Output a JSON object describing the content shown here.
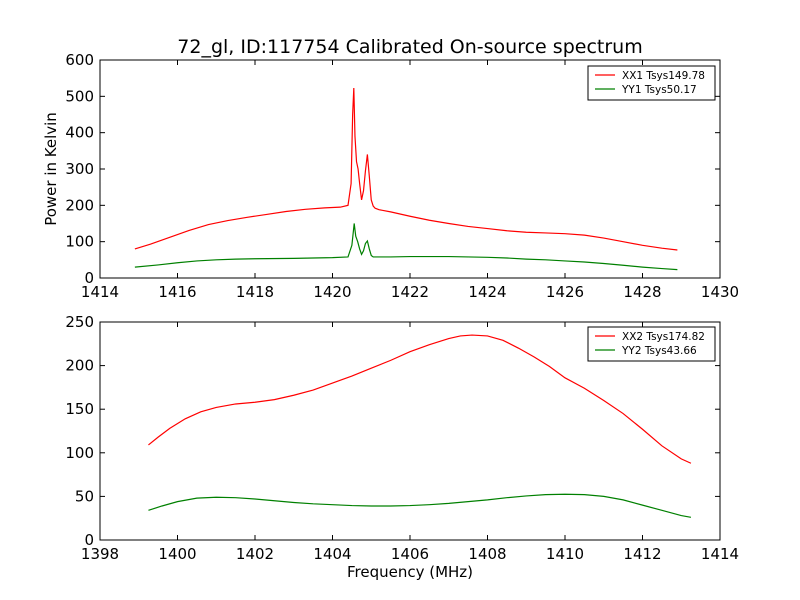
{
  "chart_data": [
    {
      "type": "line",
      "title": "72_gl, ID:117754 Calibrated On-source spectrum",
      "xlabel": "",
      "ylabel": "Power in Kelvin",
      "xlim": [
        1414,
        1430
      ],
      "ylim": [
        0,
        600
      ],
      "xticks": [
        1414,
        1416,
        1418,
        1420,
        1422,
        1424,
        1426,
        1428,
        1430
      ],
      "yticks": [
        0,
        100,
        200,
        300,
        400,
        500,
        600
      ],
      "legend_position": "top-right",
      "grid": false,
      "series": [
        {
          "name": "XX1 Tsys149.78",
          "color": "#ff0000",
          "x": [
            1414.9,
            1415.3,
            1415.8,
            1416.3,
            1416.8,
            1417.3,
            1417.8,
            1418.3,
            1418.8,
            1419.3,
            1419.8,
            1420.2,
            1420.4,
            1420.48,
            1420.52,
            1420.55,
            1420.58,
            1420.62,
            1420.66,
            1420.7,
            1420.75,
            1420.8,
            1420.85,
            1420.9,
            1420.95,
            1421.0,
            1421.05,
            1421.1,
            1421.2,
            1421.5,
            1422.0,
            1422.5,
            1423.0,
            1423.5,
            1424.0,
            1424.5,
            1425.0,
            1425.5,
            1426.0,
            1426.5,
            1427.0,
            1427.5,
            1428.0,
            1428.5,
            1428.9
          ],
          "y": [
            80,
            93,
            112,
            131,
            147,
            158,
            167,
            175,
            183,
            189,
            193,
            195,
            200,
            260,
            450,
            523,
            390,
            320,
            300,
            260,
            215,
            240,
            295,
            340,
            280,
            215,
            198,
            192,
            188,
            182,
            170,
            159,
            150,
            142,
            136,
            130,
            126,
            124,
            122,
            118,
            110,
            100,
            90,
            82,
            77
          ]
        },
        {
          "name": "YY1 Tsys50.17",
          "color": "#008000",
          "x": [
            1414.9,
            1415.5,
            1416.0,
            1416.5,
            1417.0,
            1417.5,
            1418.0,
            1419.0,
            1420.0,
            1420.4,
            1420.5,
            1420.56,
            1420.6,
            1420.65,
            1420.7,
            1420.75,
            1420.8,
            1420.85,
            1420.9,
            1420.95,
            1421.0,
            1421.05,
            1421.1,
            1421.5,
            1422.0,
            1422.5,
            1423.0,
            1423.5,
            1424.0,
            1424.5,
            1425.0,
            1425.5,
            1426.0,
            1426.5,
            1427.0,
            1427.5,
            1428.0,
            1428.5,
            1428.9
          ],
          "y": [
            30,
            36,
            42,
            47,
            50,
            52,
            53,
            54,
            56,
            58,
            90,
            150,
            115,
            100,
            80,
            65,
            75,
            95,
            102,
            80,
            62,
            58,
            58,
            58,
            59,
            59,
            59,
            58,
            57,
            55,
            52,
            50,
            47,
            44,
            40,
            35,
            30,
            26,
            23
          ]
        }
      ]
    },
    {
      "type": "line",
      "title": "",
      "xlabel": "Frequency (MHz)",
      "ylabel": "",
      "xlim": [
        1398,
        1414
      ],
      "ylim": [
        0,
        250
      ],
      "xticks": [
        1398,
        1400,
        1402,
        1404,
        1406,
        1408,
        1410,
        1412,
        1414
      ],
      "yticks": [
        0,
        50,
        100,
        150,
        200,
        250
      ],
      "legend_position": "top-right",
      "grid": false,
      "series": [
        {
          "name": "XX2 Tsys174.82",
          "color": "#ff0000",
          "x": [
            1399.25,
            1399.5,
            1399.8,
            1400.2,
            1400.6,
            1401.0,
            1401.5,
            1402.0,
            1402.5,
            1403.0,
            1403.5,
            1404.0,
            1404.5,
            1405.0,
            1405.5,
            1406.0,
            1406.5,
            1407.0,
            1407.3,
            1407.6,
            1408.0,
            1408.4,
            1408.8,
            1409.2,
            1409.6,
            1410.0,
            1410.5,
            1411.0,
            1411.5,
            1412.0,
            1412.5,
            1413.0,
            1413.25
          ],
          "y": [
            109,
            118,
            128,
            139,
            147,
            152,
            156,
            158,
            161,
            166,
            172,
            180,
            188,
            197,
            206,
            216,
            224,
            231,
            234,
            235,
            234,
            229,
            220,
            210,
            199,
            186,
            174,
            160,
            145,
            127,
            108,
            93,
            88
          ]
        },
        {
          "name": "YY2 Tsys43.66",
          "color": "#008000",
          "x": [
            1399.25,
            1399.6,
            1400.0,
            1400.5,
            1401.0,
            1401.5,
            1402.0,
            1402.5,
            1403.0,
            1403.5,
            1404.0,
            1404.5,
            1405.0,
            1405.5,
            1406.0,
            1406.5,
            1407.0,
            1407.5,
            1408.0,
            1408.5,
            1409.0,
            1409.5,
            1410.0,
            1410.5,
            1411.0,
            1411.5,
            1412.0,
            1412.5,
            1413.0,
            1413.25
          ],
          "y": [
            34,
            39,
            44,
            48,
            49,
            48.5,
            47,
            45,
            43,
            41.5,
            40.5,
            39.5,
            39,
            39,
            39.5,
            40.5,
            42,
            44,
            46,
            48.5,
            50.5,
            52,
            52.5,
            52,
            50,
            46,
            40,
            34,
            28,
            26
          ]
        }
      ]
    }
  ]
}
